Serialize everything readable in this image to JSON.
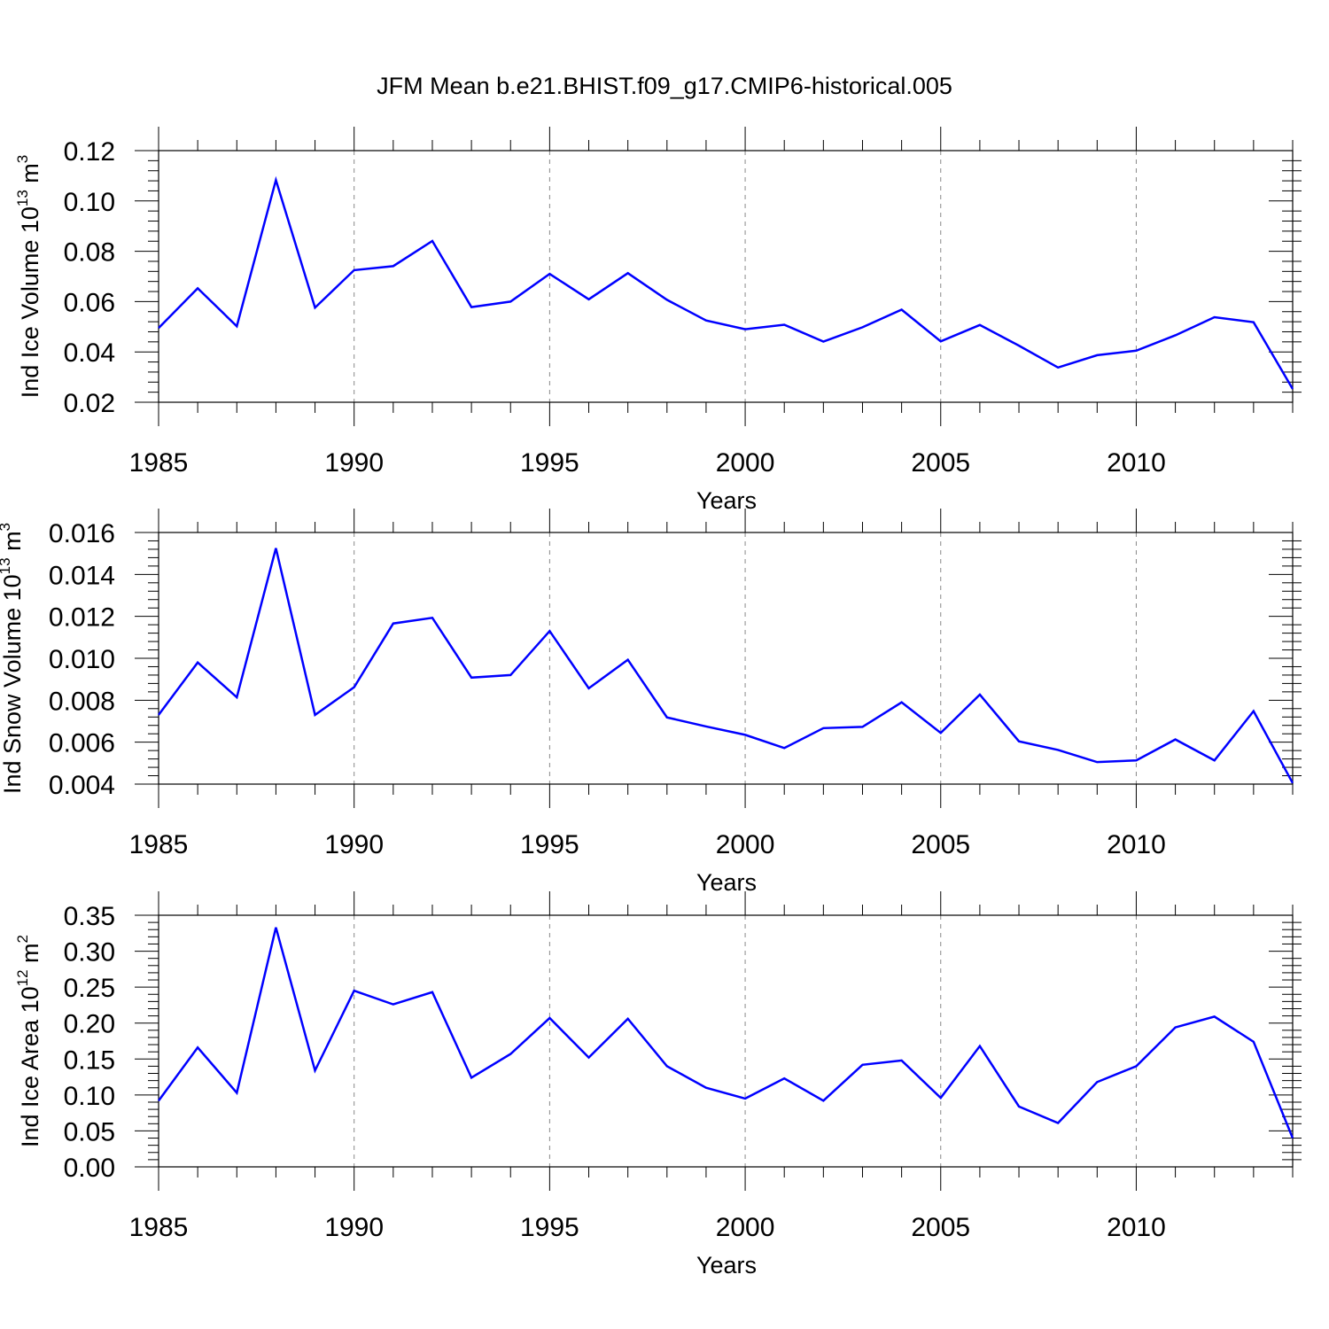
{
  "figure": {
    "title": "JFM Mean b.e21.BHIST.f09_g17.CMIP6-historical.005"
  },
  "colors": {
    "line": "#0000ff",
    "axes": "#000000",
    "grid": "#888888",
    "background": "#ffffff"
  },
  "chart_data": [
    {
      "type": "line",
      "xlabel": "Years",
      "ylabel": {
        "base": "Ind Ice Volume 10",
        "exponent": "13",
        "unit": " m",
        "unit_exponent": "3"
      },
      "xlim": [
        1985,
        2014
      ],
      "ylim": [
        0.02,
        0.12
      ],
      "xticks": [
        1985,
        1990,
        1995,
        2000,
        2005,
        2010
      ],
      "yticks": [
        "0.02",
        "0.04",
        "0.06",
        "0.08",
        "0.10",
        "0.12"
      ],
      "grid": "vertical dashed at major x ticks",
      "x": [
        1985,
        1986,
        1987,
        1988,
        1989,
        1990,
        1991,
        1992,
        1993,
        1994,
        1995,
        1996,
        1997,
        1998,
        1999,
        2000,
        2001,
        2002,
        2003,
        2004,
        2005,
        2006,
        2007,
        2008,
        2009,
        2010,
        2011,
        2012,
        2013,
        2014
      ],
      "series": [
        {
          "values": [
            0.0495,
            0.0653,
            0.0502,
            0.1083,
            0.0576,
            0.0725,
            0.0741,
            0.0841,
            0.0578,
            0.06,
            0.071,
            0.0609,
            0.0713,
            0.0607,
            0.0525,
            0.049,
            0.0508,
            0.0441,
            0.0498,
            0.0568,
            0.0442,
            0.0507,
            0.0425,
            0.0338,
            0.0387,
            0.0405,
            0.0466,
            0.0538,
            0.0518,
            0.0253
          ]
        }
      ]
    },
    {
      "type": "line",
      "xlabel": "Years",
      "ylabel": {
        "base": "Ind Snow Volume 10",
        "exponent": "13",
        "unit": " m",
        "unit_exponent": "3"
      },
      "xlim": [
        1985,
        2014
      ],
      "ylim": [
        0.004,
        0.016
      ],
      "xticks": [
        1985,
        1990,
        1995,
        2000,
        2005,
        2010
      ],
      "yticks": [
        "0.004",
        "0.006",
        "0.008",
        "0.010",
        "0.012",
        "0.014",
        "0.016"
      ],
      "grid": "vertical dashed at major x ticks",
      "x": [
        1985,
        1986,
        1987,
        1988,
        1989,
        1990,
        1991,
        1992,
        1993,
        1994,
        1995,
        1996,
        1997,
        1998,
        1999,
        2000,
        2001,
        2002,
        2003,
        2004,
        2005,
        2006,
        2007,
        2008,
        2009,
        2010,
        2011,
        2012,
        2013,
        2014
      ],
      "series": [
        {
          "values": [
            0.0073,
            0.0098,
            0.00814,
            0.01525,
            0.0073,
            0.00862,
            0.01166,
            0.01193,
            0.00908,
            0.0092,
            0.0113,
            0.00857,
            0.00993,
            0.00718,
            0.00675,
            0.00635,
            0.00572,
            0.00667,
            0.00673,
            0.0079,
            0.00644,
            0.00827,
            0.00604,
            0.00563,
            0.00505,
            0.00513,
            0.00613,
            0.00513,
            0.00748,
            0.00405
          ]
        }
      ]
    },
    {
      "type": "line",
      "xlabel": "Years",
      "ylabel": {
        "base": "Ind Ice Area 10",
        "exponent": "12",
        "unit": " m",
        "unit_exponent": "2"
      },
      "xlim": [
        1985,
        2014
      ],
      "ylim": [
        0.0,
        0.35
      ],
      "xticks": [
        1985,
        1990,
        1995,
        2000,
        2005,
        2010
      ],
      "yticks": [
        "0.00",
        "0.05",
        "0.10",
        "0.15",
        "0.20",
        "0.25",
        "0.30",
        "0.35"
      ],
      "grid": "vertical dashed at major x ticks",
      "x": [
        1985,
        1986,
        1987,
        1988,
        1989,
        1990,
        1991,
        1992,
        1993,
        1994,
        1995,
        1996,
        1997,
        1998,
        1999,
        2000,
        2001,
        2002,
        2003,
        2004,
        2005,
        2006,
        2007,
        2008,
        2009,
        2010,
        2011,
        2012,
        2013,
        2014
      ],
      "series": [
        {
          "values": [
            0.092,
            0.166,
            0.103,
            0.333,
            0.134,
            0.245,
            0.226,
            0.243,
            0.124,
            0.157,
            0.207,
            0.152,
            0.206,
            0.14,
            0.11,
            0.095,
            0.123,
            0.092,
            0.142,
            0.148,
            0.096,
            0.168,
            0.084,
            0.061,
            0.118,
            0.14,
            0.194,
            0.209,
            0.174,
            0.04
          ]
        }
      ]
    }
  ]
}
